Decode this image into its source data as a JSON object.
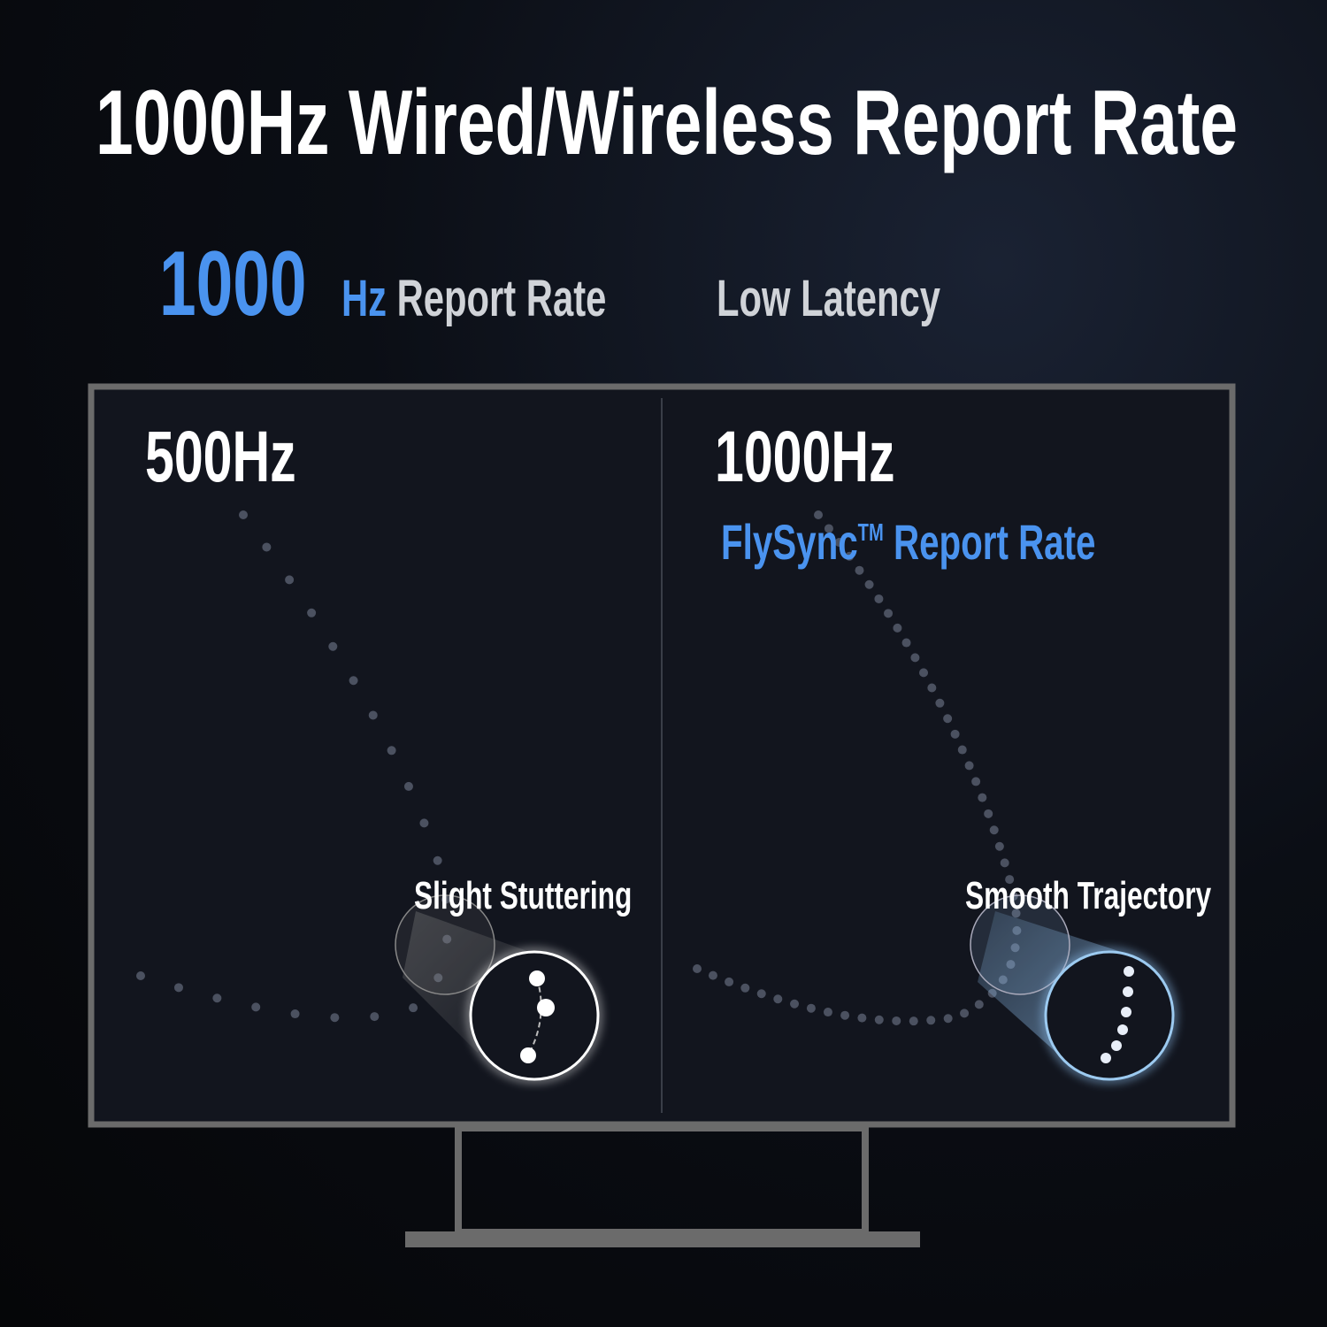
{
  "title": "1000Hz Wired/Wireless Report Rate",
  "headline": {
    "number": "1000",
    "unit": "Hz",
    "label": "Report Rate",
    "feature": "Low Latency"
  },
  "left_panel": {
    "label": "500Hz",
    "callout": "Slight Stuttering"
  },
  "right_panel": {
    "label": "1000Hz",
    "subtitle": "FlySync",
    "trademark": "TM",
    "subtitle_suffix": " Report Rate",
    "callout": "Smooth Trajectory"
  },
  "colors": {
    "accent": "#4a93ef",
    "frame": "#6b6b6b",
    "screen": "#12151e"
  }
}
